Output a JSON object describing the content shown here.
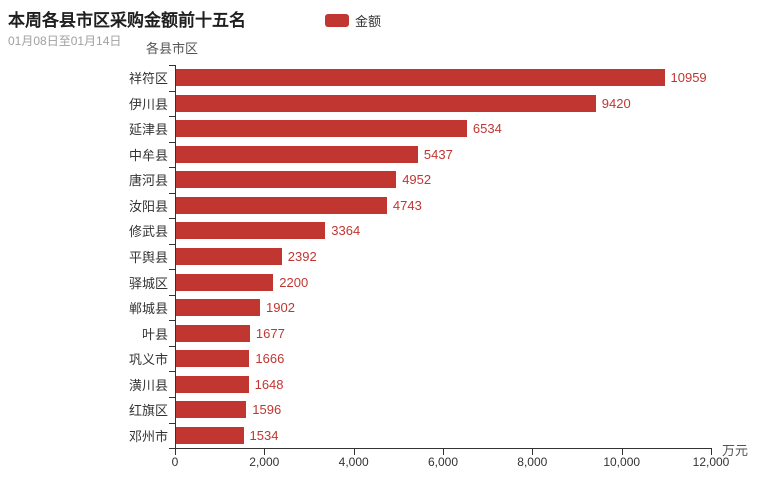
{
  "header": {
    "title": "本周各县市区采购金额前十五名",
    "subtitle": "01月08日至01月14日",
    "legend_label": "金额"
  },
  "axes": {
    "y_name": "各县市区",
    "x_unit": "万元",
    "x_ticks": [
      "0",
      "2,000",
      "4,000",
      "6,000",
      "8,000",
      "10,000",
      "12,000"
    ]
  },
  "colors": {
    "bar": "#c23632",
    "value_label": "#c23632",
    "axis": "#333333",
    "title": "#1f1f1f",
    "subtitle": "#a0a0a0"
  },
  "chart_data": {
    "type": "bar",
    "orientation": "horizontal",
    "title": "本周各县市区采购金额前十五名",
    "subtitle": "01月08日至01月14日",
    "legend": [
      "金额"
    ],
    "legend_position": "top-center",
    "grid": false,
    "ylabel": "各县市区",
    "xlabel_unit": "万元",
    "xlim": [
      0,
      12000
    ],
    "x_tick_values": [
      0,
      2000,
      4000,
      6000,
      8000,
      10000,
      12000
    ],
    "categories": [
      "祥符区",
      "伊川县",
      "延津县",
      "中牟县",
      "唐河县",
      "汝阳县",
      "修武县",
      "平舆县",
      "驿城区",
      "郸城县",
      "叶县",
      "巩义市",
      "潢川县",
      "红旗区",
      "邓州市"
    ],
    "values": [
      10959,
      9420,
      6534,
      5437,
      4952,
      4743,
      3364,
      2392,
      2200,
      1902,
      1677,
      1666,
      1648,
      1596,
      1534
    ]
  }
}
